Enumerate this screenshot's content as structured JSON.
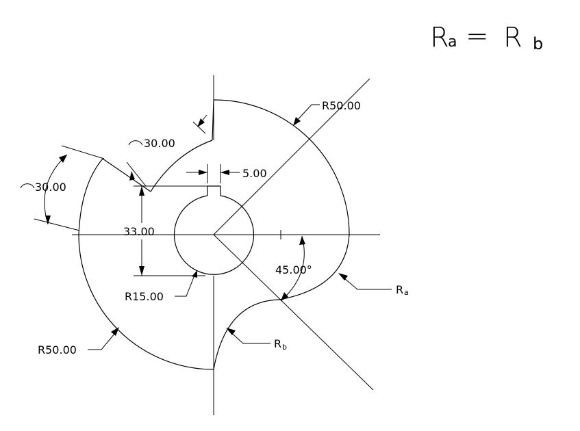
{
  "diagram": {
    "formula": {
      "lhs": "R",
      "lhs_sub": "a",
      "eq": "=",
      "rhs": "R",
      "rhs_sub": "b"
    },
    "labels": {
      "r50_top": "R50.00",
      "r50_bottom": "R50.00",
      "arc30_top": "30.00",
      "arc30_left": "30.00",
      "keyway_width": "5.00",
      "height_33": "33.00",
      "r15": "R15.00",
      "angle45": "45.00°",
      "ra": "R",
      "ra_sub": "a",
      "rb": "R",
      "rb_sub": "b"
    }
  }
}
